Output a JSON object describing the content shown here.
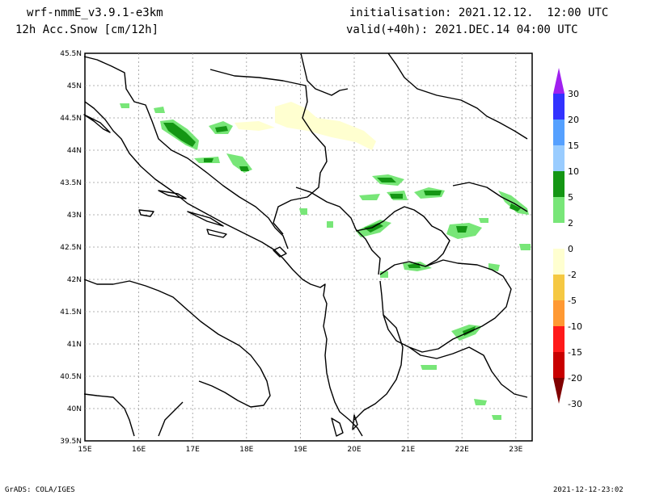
{
  "header": {
    "model": "wrf-nmmE_v3.9.1-e3km",
    "field": "12h Acc.Snow [cm/12h]",
    "init": "initialisation: 2021.12.12.  12:00 UTC",
    "valid": "valid(+40h): 2021.DEC.14 04:00 UTC"
  },
  "axes": {
    "lat_labels": [
      "45.5N",
      "45N",
      "44.5N",
      "44N",
      "43.5N",
      "43N",
      "42.5N",
      "42N",
      "41.5N",
      "41N",
      "40.5N",
      "40N",
      "39.5N"
    ],
    "lon_labels": [
      "15E",
      "16E",
      "17E",
      "18E",
      "19E",
      "20E",
      "21E",
      "22E",
      "23E"
    ]
  },
  "colorbar": {
    "labels": [
      "30",
      "20",
      "15",
      "10",
      "5",
      "2",
      "0",
      "-2",
      "-5",
      "-10",
      "-15",
      "-20",
      "-30"
    ],
    "colors": [
      "#a020f0",
      "#3232ff",
      "#55a0ff",
      "#99ccff",
      "#149614",
      "#78e678",
      "#ffffff",
      "#ffffd0",
      "#f5c842",
      "#ff9933",
      "#ff1a1a",
      "#c80000",
      "#800000"
    ]
  },
  "footer": {
    "left": "GrADS: COLA/IGES",
    "right": "2021-12-12-23:02"
  }
}
